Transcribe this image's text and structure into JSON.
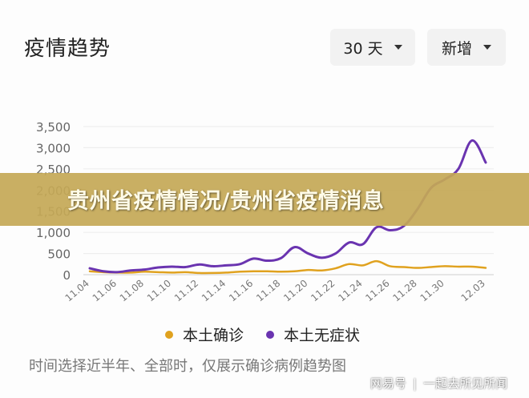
{
  "header": {
    "title": "疫情趋势",
    "range_select": "30 天",
    "metric_select": "新增"
  },
  "legend": [
    {
      "label": "本土确诊",
      "color": "#e0a21f"
    },
    {
      "label": "本土无症状",
      "color": "#6a34b0"
    }
  ],
  "note": "时间选择近半年、全部时，仅展示确诊病例趋势图",
  "banner": "贵州省疫情情况/贵州省疫情消息",
  "watermark": {
    "logo": "网易号",
    "text": "一起去所见所闻"
  },
  "chart_data": {
    "type": "line",
    "title": "",
    "xlabel": "",
    "ylabel": "",
    "ylim": [
      0,
      3500
    ],
    "yticks": [
      0,
      500,
      1000,
      1500,
      2000,
      2500,
      3000,
      3500
    ],
    "ytick_labels": [
      "0",
      "500",
      "1,000",
      "1,500",
      "2,000",
      "2,500",
      "3,000",
      "3,500"
    ],
    "x": [
      "11.04",
      "11.05",
      "11.06",
      "11.07",
      "11.08",
      "11.09",
      "11.10",
      "11.11",
      "11.12",
      "11.13",
      "11.14",
      "11.15",
      "11.16",
      "11.17",
      "11.18",
      "11.19",
      "11.20",
      "11.21",
      "11.22",
      "11.23",
      "11.24",
      "11.25",
      "11.26",
      "11.27",
      "11.28",
      "11.29",
      "11.30",
      "12.01",
      "12.02",
      "12.03"
    ],
    "xtick_labels": [
      "11.04",
      "11.06",
      "11.08",
      "11.10",
      "11.12",
      "11.14",
      "11.16",
      "11.18",
      "11.20",
      "11.22",
      "11.24",
      "11.26",
      "11.28",
      "11.30",
      "12.03"
    ],
    "grid": true,
    "series": [
      {
        "name": "本土确诊",
        "color": "#e0a21f",
        "values": [
          80,
          60,
          50,
          50,
          70,
          60,
          50,
          60,
          40,
          40,
          50,
          70,
          80,
          80,
          70,
          80,
          110,
          100,
          150,
          250,
          220,
          320,
          200,
          180,
          160,
          180,
          200,
          190,
          190,
          160
        ]
      },
      {
        "name": "本土无症状",
        "color": "#6a34b0",
        "values": [
          150,
          80,
          60,
          100,
          120,
          170,
          190,
          180,
          240,
          200,
          220,
          250,
          380,
          330,
          390,
          650,
          500,
          400,
          500,
          760,
          720,
          1120,
          1050,
          1150,
          1550,
          2050,
          2250,
          2500,
          3170,
          2650
        ]
      }
    ]
  }
}
